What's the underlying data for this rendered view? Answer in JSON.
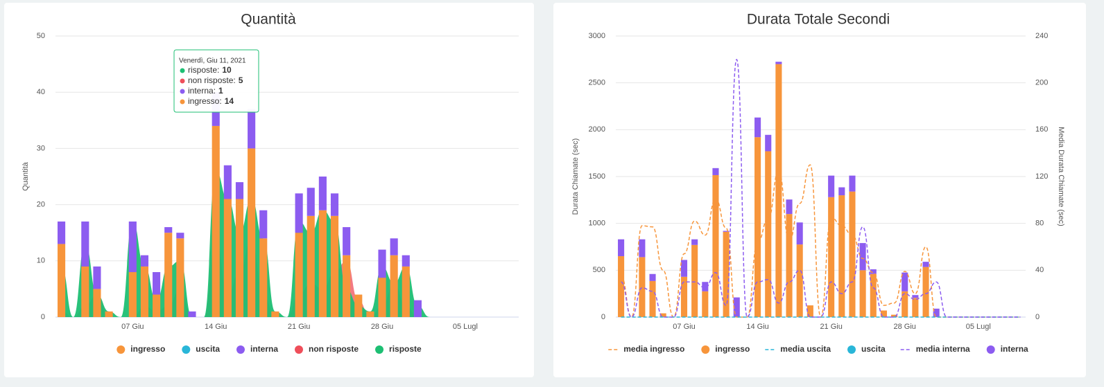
{
  "chart_data": [
    {
      "type": "bar",
      "title": "Quantità",
      "ylabel": "Quantità",
      "categories": [
        null,
        null,
        null,
        null,
        null,
        null,
        "07 Giu",
        null,
        null,
        null,
        null,
        null,
        null,
        "14 Giu",
        null,
        null,
        null,
        null,
        null,
        null,
        "21 Giu",
        null,
        null,
        null,
        null,
        null,
        null,
        "28 Giu",
        null,
        null,
        null,
        null,
        null,
        null,
        "05 Lugl",
        null,
        null,
        null,
        null
      ],
      "series": [
        {
          "name": "ingresso",
          "type": "bar",
          "color": "#f7953b",
          "values": [
            13,
            0,
            9,
            5,
            1,
            0,
            8,
            9,
            4,
            15,
            14,
            0,
            0,
            34,
            21,
            21,
            30,
            14,
            1,
            0,
            15,
            18,
            19,
            18,
            11,
            4,
            1,
            7,
            11,
            9,
            0,
            0,
            0,
            0,
            0,
            0,
            0,
            0,
            0
          ]
        },
        {
          "name": "uscita",
          "type": "bar",
          "color": "#29b6d8",
          "values": [
            0,
            0,
            0,
            0,
            0,
            0,
            0,
            0,
            0,
            0,
            0,
            0,
            0,
            0,
            0,
            0,
            0,
            0,
            0,
            0,
            0,
            0,
            0,
            0,
            0,
            0,
            0,
            0,
            0,
            0,
            0,
            0,
            0,
            0,
            0,
            0,
            0,
            0,
            0
          ]
        },
        {
          "name": "interna",
          "type": "bar",
          "color": "#8c5cf0",
          "values": [
            4,
            0,
            8,
            4,
            0,
            0,
            9,
            2,
            4,
            1,
            1,
            1,
            0,
            6,
            6,
            3,
            7,
            5,
            0,
            0,
            7,
            5,
            6,
            4,
            5,
            0,
            0,
            5,
            3,
            2,
            3,
            0,
            0,
            0,
            0,
            0,
            0,
            0,
            0
          ]
        },
        {
          "name": "non risposte",
          "type": "area",
          "color": "#ef4e5a",
          "values": [
            1,
            0,
            2,
            4,
            0,
            0,
            0,
            2,
            1,
            2,
            5,
            0,
            0,
            14,
            4,
            8,
            14,
            4,
            0,
            0,
            4,
            6,
            5,
            8,
            10,
            3,
            0,
            2,
            6,
            2,
            0,
            0,
            0,
            0,
            0,
            0,
            0,
            0,
            0
          ]
        },
        {
          "name": "risposte",
          "type": "area",
          "color": "#1dbf73",
          "values": [
            9,
            0,
            13,
            4,
            1,
            0,
            17,
            9,
            3,
            9,
            10,
            0,
            0,
            26,
            21,
            15,
            21,
            14,
            1,
            0,
            17,
            15,
            19,
            17,
            5,
            2,
            1,
            9,
            6,
            9,
            2,
            0,
            0,
            0,
            0,
            0,
            0,
            0,
            0
          ]
        }
      ],
      "ylim": [
        0,
        50
      ],
      "yticks": [
        0,
        10,
        20,
        30,
        40,
        50
      ],
      "grid": true,
      "tooltip": {
        "title": "Venerdì, Giu 11, 2021",
        "items": [
          {
            "name": "risposte:",
            "value": 10,
            "color": "#1dbf73"
          },
          {
            "name": "non risposte:",
            "value": 5,
            "color": "#ef4e5a"
          },
          {
            "name": "interna:",
            "value": 1,
            "color": "#8c5cf0"
          },
          {
            "name": "ingresso:",
            "value": 14,
            "color": "#f7953b"
          }
        ]
      }
    },
    {
      "type": "bar",
      "title": "Durata Totale Secondi",
      "ylabel": "Durata Chiamate (sec)",
      "y2label": "Media Durata Chiamate (sec)",
      "categories": [
        null,
        null,
        null,
        null,
        null,
        null,
        "07 Giu",
        null,
        null,
        null,
        null,
        null,
        null,
        "14 Giu",
        null,
        null,
        null,
        null,
        null,
        null,
        "21 Giu",
        null,
        null,
        null,
        null,
        null,
        null,
        "28 Giu",
        null,
        null,
        null,
        null,
        null,
        null,
        "05 Lugl",
        null,
        null,
        null,
        null
      ],
      "series": [
        {
          "name": "media ingresso",
          "type": "line",
          "dash": true,
          "axis": "y2",
          "color": "#f7953b",
          "values": [
            35,
            0,
            78,
            77,
            40,
            0,
            54,
            82,
            70,
            101,
            76,
            0,
            0,
            64,
            84,
            125,
            65,
            97,
            130,
            0,
            85,
            78,
            70,
            50,
            38,
            10,
            12,
            39,
            20,
            60,
            0,
            0,
            0,
            0,
            0,
            0,
            0,
            0,
            0
          ]
        },
        {
          "name": "ingresso",
          "type": "bar",
          "color": "#f7953b",
          "values": [
            650,
            0,
            640,
            385,
            40,
            0,
            430,
            770,
            275,
            1515,
            910,
            0,
            0,
            1920,
            1770,
            2700,
            1100,
            775,
            125,
            0,
            1280,
            1300,
            1340,
            500,
            460,
            70,
            25,
            275,
            205,
            535,
            0,
            0,
            0,
            0,
            0,
            0,
            0,
            0,
            0
          ]
        },
        {
          "name": "media uscita",
          "type": "line",
          "dash": true,
          "axis": "y2",
          "color": "#29b6d8",
          "values": [
            0,
            0,
            0,
            0,
            0,
            0,
            0,
            0,
            0,
            0,
            0,
            0,
            0,
            0,
            0,
            0,
            0,
            0,
            0,
            0,
            0,
            0,
            0,
            0,
            0,
            0,
            0,
            0,
            0,
            0,
            0,
            0,
            0,
            0,
            0,
            0,
            0,
            0,
            0
          ]
        },
        {
          "name": "uscita",
          "type": "bar",
          "color": "#29b6d8",
          "values": [
            0,
            0,
            0,
            0,
            0,
            0,
            0,
            0,
            0,
            0,
            0,
            0,
            0,
            0,
            0,
            0,
            0,
            0,
            0,
            0,
            0,
            0,
            0,
            0,
            0,
            0,
            0,
            0,
            0,
            0,
            0,
            0,
            0,
            0,
            0,
            0,
            0,
            0,
            0
          ]
        },
        {
          "name": "media interna",
          "type": "line",
          "dash": true,
          "axis": "y2",
          "color": "#8c5cf0",
          "values": [
            30,
            0,
            25,
            22,
            0,
            0,
            30,
            30,
            25,
            38,
            10,
            220,
            0,
            30,
            32,
            12,
            30,
            40,
            0,
            0,
            30,
            20,
            30,
            77,
            25,
            0,
            0,
            20,
            15,
            20,
            30,
            0,
            0,
            0,
            0,
            0,
            0,
            0,
            0
          ]
        },
        {
          "name": "interna",
          "type": "bar",
          "color": "#8c5cf0",
          "values": [
            180,
            0,
            190,
            75,
            0,
            0,
            180,
            60,
            100,
            75,
            10,
            210,
            0,
            210,
            175,
            25,
            155,
            235,
            0,
            0,
            230,
            85,
            170,
            290,
            50,
            0,
            0,
            200,
            30,
            55,
            90,
            0,
            0,
            0,
            0,
            0,
            0,
            0,
            0
          ]
        }
      ],
      "ylim": [
        0,
        3000
      ],
      "yticks": [
        0,
        500,
        1000,
        1500,
        2000,
        2500,
        3000
      ],
      "y2lim": [
        0,
        240
      ],
      "y2ticks": [
        0,
        40,
        80,
        120,
        160,
        200,
        240
      ],
      "grid": true
    }
  ]
}
